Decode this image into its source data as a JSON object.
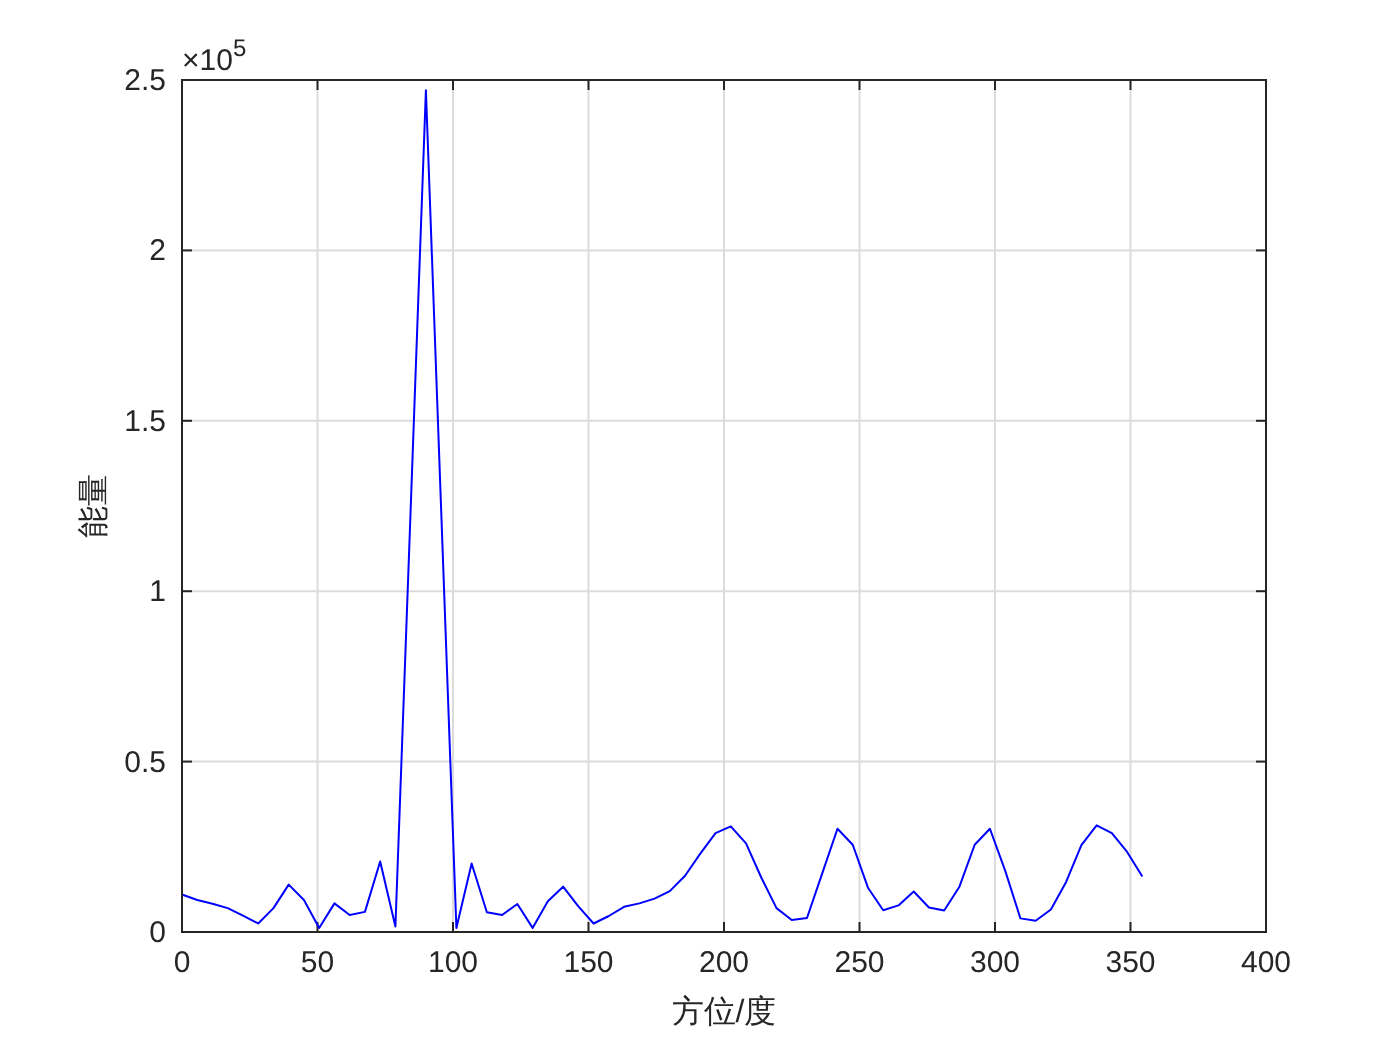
{
  "chart_data": {
    "type": "line",
    "xlabel": "方位/度",
    "ylabel": "能量",
    "annotations": [
      "×10$^{5}$"
    ],
    "x": [
      0,
      5.625,
      11.25,
      16.875,
      22.5,
      28.125,
      33.75,
      39.375,
      45,
      50.625,
      56.25,
      61.875,
      67.5,
      73.125,
      78.75,
      84.375,
      90,
      95.625,
      101.25,
      106.875,
      112.5,
      118.125,
      123.75,
      129.375,
      135,
      140.625,
      146.25,
      151.875,
      157.5,
      163.125,
      168.75,
      174.375,
      180,
      185.625,
      191.25,
      196.875,
      202.5,
      208.125,
      213.75,
      219.375,
      225,
      230.625,
      236.25,
      241.875,
      247.5,
      253.125,
      258.75,
      264.375,
      270,
      275.625,
      281.25,
      286.875,
      292.5,
      298.125,
      303.75,
      309.375,
      315,
      320.625,
      326.25,
      331.875,
      337.5,
      343.125,
      348.75,
      354.375
    ],
    "series": [
      {
        "color": "#0000ff",
        "values": [
          0.11,
          0.094,
          0.083,
          0.07,
          0.048,
          0.025,
          0.07,
          0.139,
          0.094,
          0.012,
          0.084,
          0.05,
          0.059,
          0.207,
          0.016,
          1.24,
          2.47,
          1.24,
          0.012,
          0.201,
          0.058,
          0.05,
          0.082,
          0.012,
          0.09,
          0.133,
          0.075,
          0.025,
          0.047,
          0.074,
          0.084,
          0.098,
          0.12,
          0.165,
          0.23,
          0.29,
          0.31,
          0.26,
          0.16,
          0.07,
          0.035,
          0.041,
          0.172,
          0.303,
          0.256,
          0.13,
          0.064,
          0.078,
          0.119,
          0.072,
          0.063,
          0.133,
          0.256,
          0.303,
          0.18,
          0.04,
          0.033,
          0.066,
          0.147,
          0.255,
          0.313,
          0.29,
          0.235,
          0.163
        ]
      }
    ],
    "xlim": [
      0,
      400
    ],
    "xticks": [
      0,
      50,
      100,
      150,
      200,
      250,
      300,
      350,
      400
    ],
    "ylim": [
      0,
      2.5
    ],
    "yticks": [
      0,
      0.5,
      1,
      1.5,
      2,
      2.5
    ],
    "grid": true,
    "marker": "none",
    "line_style": "solid"
  }
}
